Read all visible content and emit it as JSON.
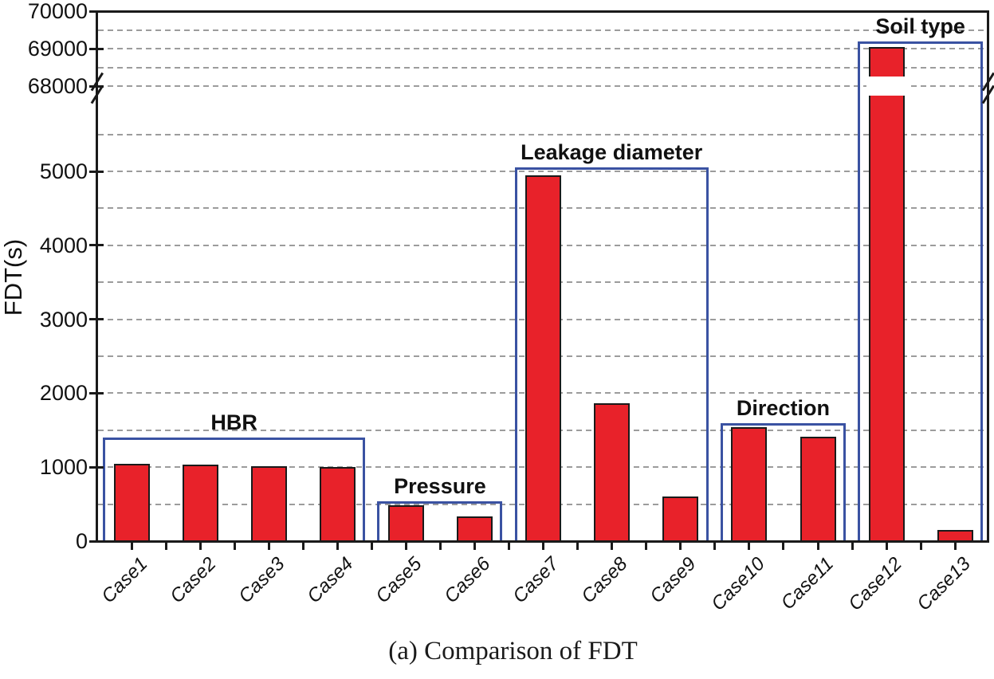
{
  "chart_data": {
    "type": "bar",
    "caption": "(a) Comparison of FDT",
    "ylabel": "FDT(s)",
    "categories": [
      "Case1",
      "Case2",
      "Case3",
      "Case4",
      "Case5",
      "Case6",
      "Case7",
      "Case8",
      "Case9",
      "Case10",
      "Case11",
      "Case12",
      "Case13"
    ],
    "values": [
      1050,
      1035,
      1015,
      1000,
      490,
      330,
      4950,
      1860,
      600,
      1540,
      1410,
      69050,
      150
    ],
    "groups": [
      {
        "label": "HBR",
        "from": 0,
        "to": 3,
        "box_top_value": 1400
      },
      {
        "label": "Pressure",
        "from": 4,
        "to": 5,
        "box_top_value": 540
      },
      {
        "label": "Leakage diameter",
        "from": 6,
        "to": 8,
        "box_top_value": 5050
      },
      {
        "label": "Direction",
        "from": 9,
        "to": 10,
        "box_top_value": 1600
      },
      {
        "label": "Soil type",
        "from": 11,
        "to": 12,
        "box_top_value": 69200
      }
    ],
    "y_axis": {
      "lower_tick_labels": [
        "0",
        "1000",
        "2000",
        "3000",
        "4000",
        "5000"
      ],
      "lower_tick_values": [
        0,
        1000,
        2000,
        3000,
        4000,
        5000
      ],
      "upper_tick_labels": [
        "68000",
        "69000",
        "70000"
      ],
      "upper_tick_values": [
        68000,
        69000,
        70000
      ],
      "lower_grid_values": [
        500,
        1000,
        1500,
        2000,
        2500,
        3000,
        3500,
        4000,
        4500,
        5000,
        5500
      ],
      "upper_grid_values": [
        68000,
        68500,
        69000,
        69500
      ],
      "axis_break": true,
      "lower_range": [
        0,
        5900
      ],
      "upper_range": [
        68000,
        70000
      ],
      "grid_style": "dashed"
    },
    "legend": null,
    "colors": {
      "bar_fill": "#e8222a",
      "bar_edge": "#1a1a1a",
      "group_box": "#3a52a2",
      "grid": "#9c9c9c",
      "axis": "#1a1a1a",
      "background": "#ffffff"
    }
  }
}
